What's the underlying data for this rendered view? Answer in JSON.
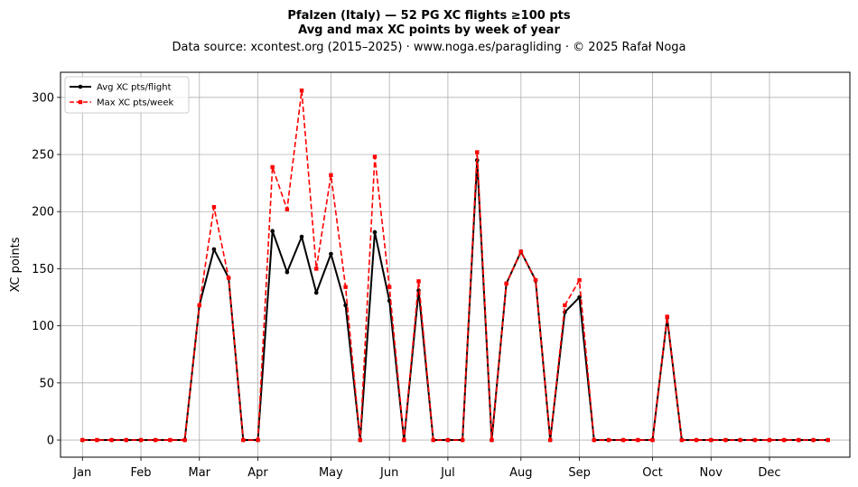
{
  "chart_data": {
    "type": "line",
    "title_lines": [
      "Pfalzen (Italy)  —  52 PG XC flights ≥100 pts",
      "Avg and max XC points by week of year"
    ],
    "subtitle": "Data source: xcontest.org (2015–2025)  ·  www.noga.es/paragliding  ·  © 2025 Rafał Noga",
    "xlabel": "",
    "ylabel": "XC points",
    "x_axis_unit": "week of year",
    "x_ticks": [
      {
        "label": "Jan",
        "week": 1
      },
      {
        "label": "Feb",
        "week": 5
      },
      {
        "label": "Mar",
        "week": 9
      },
      {
        "label": "Apr",
        "week": 13
      },
      {
        "label": "May",
        "week": 18
      },
      {
        "label": "Jun",
        "week": 22
      },
      {
        "label": "Jul",
        "week": 26
      },
      {
        "label": "Aug",
        "week": 31
      },
      {
        "label": "Sep",
        "week": 35
      },
      {
        "label": "Oct",
        "week": 40
      },
      {
        "label": "Nov",
        "week": 44
      },
      {
        "label": "Dec",
        "week": 48
      }
    ],
    "y_ticks": [
      0,
      50,
      100,
      150,
      200,
      250,
      300
    ],
    "xlim": [
      -0.5,
      53.5
    ],
    "ylim": [
      -15,
      322
    ],
    "grid": true,
    "legend_position": "top-left",
    "x": [
      1,
      2,
      3,
      4,
      5,
      6,
      7,
      8,
      9,
      10,
      11,
      12,
      13,
      14,
      15,
      16,
      17,
      18,
      19,
      20,
      21,
      22,
      23,
      24,
      25,
      26,
      27,
      28,
      29,
      30,
      31,
      32,
      33,
      34,
      35,
      36,
      37,
      38,
      39,
      40,
      41,
      42,
      43,
      44,
      45,
      46,
      47,
      48,
      49,
      50,
      51,
      52
    ],
    "series": [
      {
        "name": "Avg XC pts/flight",
        "color": "#000000",
        "style": "solid",
        "marker": "circle",
        "values": [
          0,
          0,
          0,
          0,
          0,
          0,
          0,
          0,
          118,
          167,
          142,
          0,
          0,
          183,
          147,
          178,
          129,
          163,
          118,
          0,
          182,
          122,
          0,
          131,
          0,
          0,
          0,
          245,
          0,
          137,
          165,
          140,
          0,
          112,
          125,
          0,
          0,
          0,
          0,
          0,
          107,
          0,
          0,
          0,
          0,
          0,
          0,
          0,
          0,
          0,
          0,
          0
        ]
      },
      {
        "name": "Max XC pts/week",
        "color": "#ff0000",
        "style": "dashed",
        "marker": "square",
        "values": [
          0,
          0,
          0,
          0,
          0,
          0,
          0,
          0,
          118,
          204,
          142,
          0,
          0,
          239,
          202,
          306,
          150,
          232,
          134,
          0,
          248,
          134,
          0,
          139,
          0,
          0,
          0,
          252,
          0,
          137,
          165,
          140,
          0,
          118,
          140,
          0,
          0,
          0,
          0,
          0,
          108,
          0,
          0,
          0,
          0,
          0,
          0,
          0,
          0,
          0,
          0,
          0
        ]
      }
    ]
  }
}
